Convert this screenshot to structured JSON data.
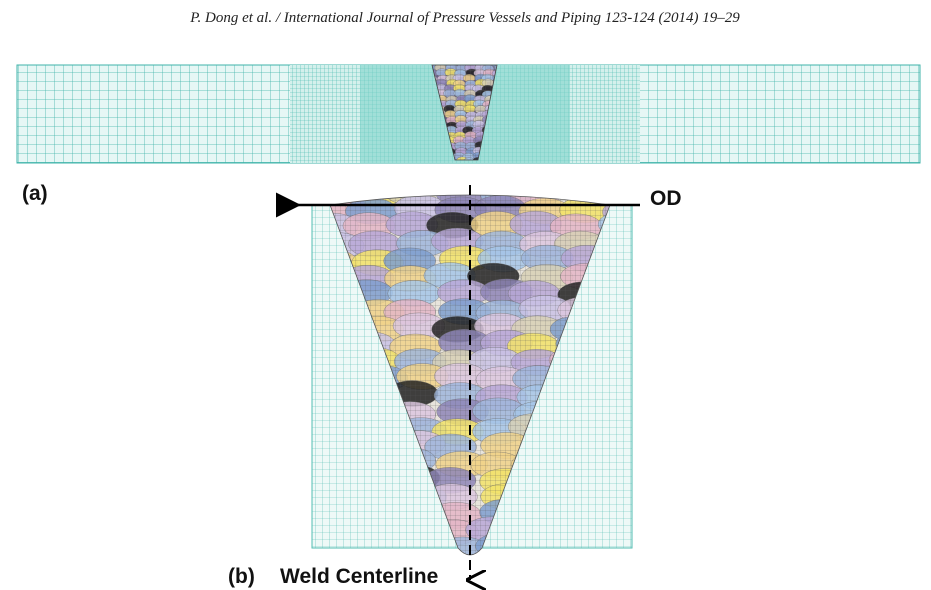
{
  "header": {
    "citation": "P. Dong et al. / International Journal of Pressure Vessels and Piping 123-124 (2014) 19–29"
  },
  "panel_a": {
    "label": "(a)"
  },
  "panel_b": {
    "label": "(b)",
    "od_label": "OD",
    "centerline_label": "Weld Centerline"
  }
}
